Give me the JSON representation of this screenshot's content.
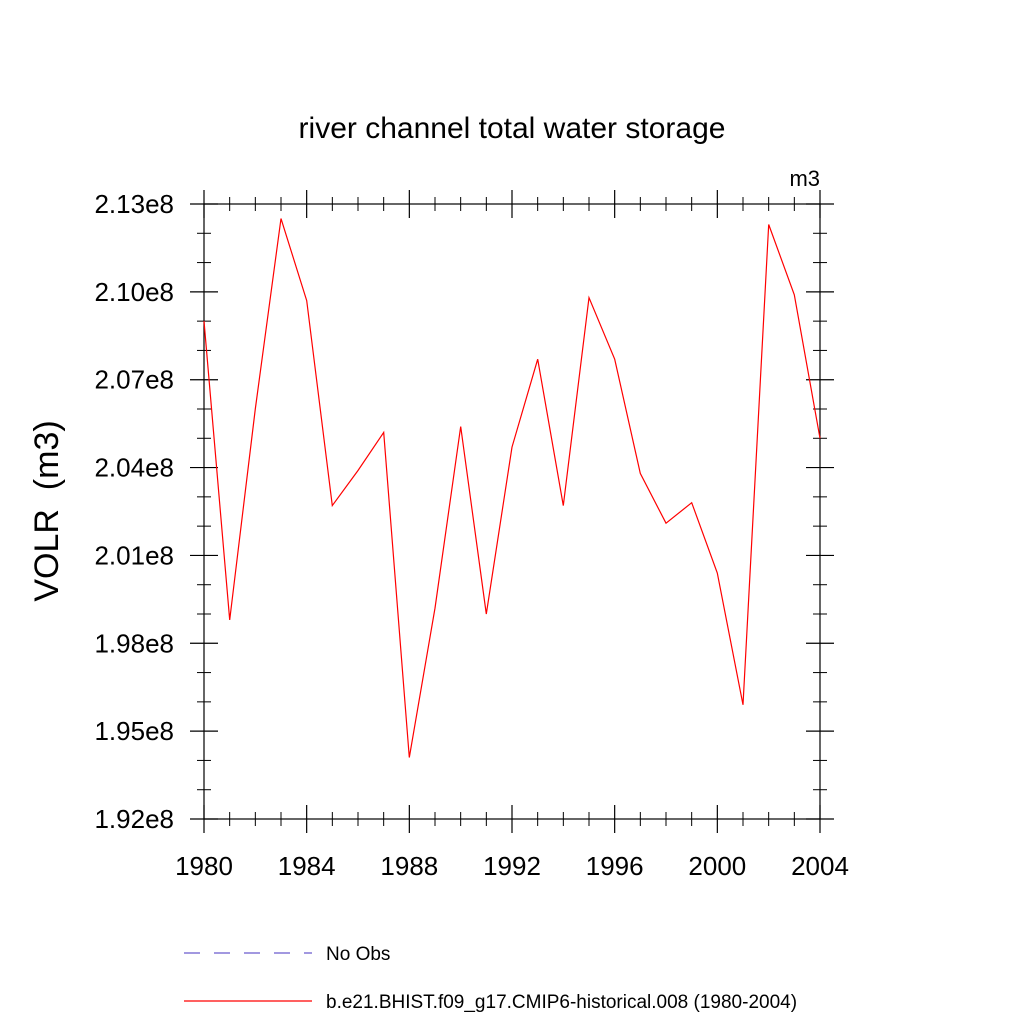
{
  "chart_data": {
    "type": "line",
    "title": "river channel total water storage",
    "units_label": "m3",
    "ylabel": "VOLR  (m3)",
    "xlabel": "",
    "xlim": [
      1980,
      2004
    ],
    "ylim": [
      192000000.0,
      213000000.0
    ],
    "x_ticks": [
      1980,
      1984,
      1988,
      1992,
      1996,
      2000,
      2004
    ],
    "x_tick_labels": [
      "1980",
      "1984",
      "1988",
      "1992",
      "1996",
      "2000",
      "2004"
    ],
    "y_ticks": [
      192000000.0,
      195000000.0,
      198000000.0,
      201000000.0,
      204000000.0,
      207000000.0,
      210000000.0,
      213000000.0
    ],
    "y_tick_labels": [
      "1.92e8",
      "1.95e8",
      "1.98e8",
      "2.01e8",
      "2.04e8",
      "2.07e8",
      "2.10e8",
      "2.13e8"
    ],
    "grid": false,
    "legend_position": "bottom",
    "series": [
      {
        "name": "No Obs",
        "color": "#6a5acd",
        "style": "dashed",
        "x": [],
        "y": []
      },
      {
        "name": "b.e21.BHIST.f09_g17.CMIP6-historical.008 (1980-2004)",
        "color": "#ff0000",
        "style": "solid",
        "x": [
          1980,
          1981,
          1982,
          1983,
          1984,
          1985,
          1986,
          1987,
          1988,
          1989,
          1990,
          1991,
          1992,
          1993,
          1994,
          1995,
          1996,
          1997,
          1998,
          1999,
          2000,
          2001,
          2002,
          2003,
          2004
        ],
        "y": [
          209000000.0,
          198800000.0,
          206000000.0,
          212500000.0,
          209700000.0,
          202700000.0,
          203900000.0,
          205200000.0,
          194100000.0,
          199200000.0,
          205400000.0,
          199000000.0,
          204700000.0,
          207700000.0,
          202700000.0,
          209800000.0,
          207700000.0,
          203800000.0,
          202100000.0,
          202800000.0,
          200400000.0,
          195900000.0,
          212300000.0,
          209900000.0,
          205000000.0
        ]
      }
    ]
  }
}
